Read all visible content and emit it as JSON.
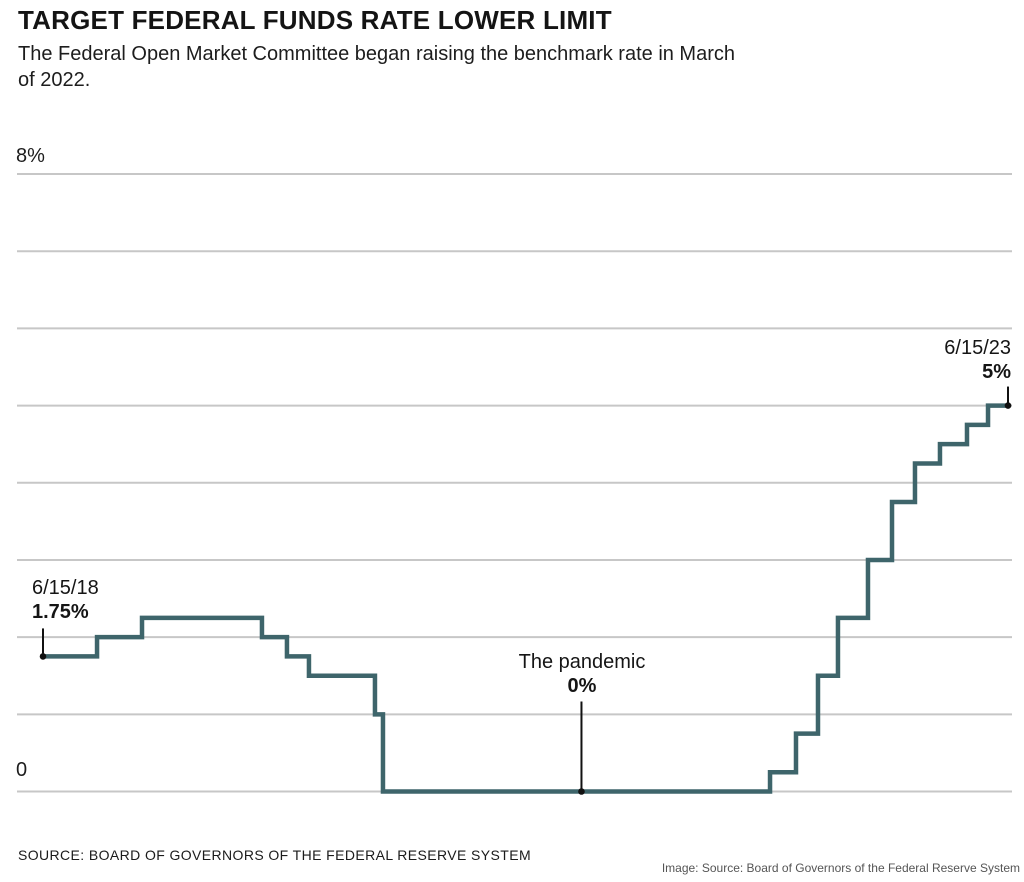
{
  "page": {
    "title": "TARGET FEDERAL FUNDS RATE LOWER LIMIT",
    "subtitle_lines": [
      "The Federal Open Market Committee began raising the benchmark rate in March",
      "of 2022."
    ],
    "source": "SOURCE: BOARD OF GOVERNORS OF THE FEDERAL RESERVE SYSTEM",
    "credit": "Image: Source: Board of Governors of the Federal Reserve System"
  },
  "chart_data": {
    "type": "line",
    "step": true,
    "title": "Target federal funds rate lower limit",
    "x_range_labels": [
      "6/15/18",
      "6/15/23"
    ],
    "ylim": [
      0,
      8
    ],
    "grid_interval": 1,
    "grid_on": true,
    "y_ticks": [
      {
        "value": 8,
        "label": "8%"
      },
      {
        "value": 0,
        "label": "0"
      }
    ],
    "colors": {
      "line": "#3E656B",
      "grid": "#C7C7C7",
      "annotation": "#111111"
    },
    "steps": [
      {
        "t": 0.0,
        "rate": 1.75
      },
      {
        "t": 0.056,
        "rate": 2.0
      },
      {
        "t": 0.1026,
        "rate": 2.25
      },
      {
        "t": 0.2269,
        "rate": 2.0
      },
      {
        "t": 0.2528,
        "rate": 1.75
      },
      {
        "t": 0.2756,
        "rate": 1.5
      },
      {
        "t": 0.344,
        "rate": 1.0
      },
      {
        "t": 0.3523,
        "rate": 0.0
      },
      {
        "t": 0.7534,
        "rate": 0.25
      },
      {
        "t": 0.7803,
        "rate": 0.75
      },
      {
        "t": 0.8031,
        "rate": 1.5
      },
      {
        "t": 0.8238,
        "rate": 2.25
      },
      {
        "t": 0.8549,
        "rate": 3.0
      },
      {
        "t": 0.8798,
        "rate": 3.75
      },
      {
        "t": 0.9036,
        "rate": 4.25
      },
      {
        "t": 0.9295,
        "rate": 4.5
      },
      {
        "t": 0.9575,
        "rate": 4.75
      },
      {
        "t": 0.9793,
        "rate": 5.0
      },
      {
        "t": 1.0,
        "rate": 5.0
      }
    ],
    "annotations": [
      {
        "id": "start",
        "lines": [
          "6/15/18",
          "1.75%"
        ],
        "t": 0.0,
        "rate": 1.75
      },
      {
        "id": "pandemic",
        "lines": [
          "The pandemic",
          "0%"
        ],
        "t": 0.558,
        "rate": 0.0
      },
      {
        "id": "end",
        "lines": [
          "6/15/23",
          "5%"
        ],
        "t": 1.0,
        "rate": 5.0
      }
    ]
  }
}
